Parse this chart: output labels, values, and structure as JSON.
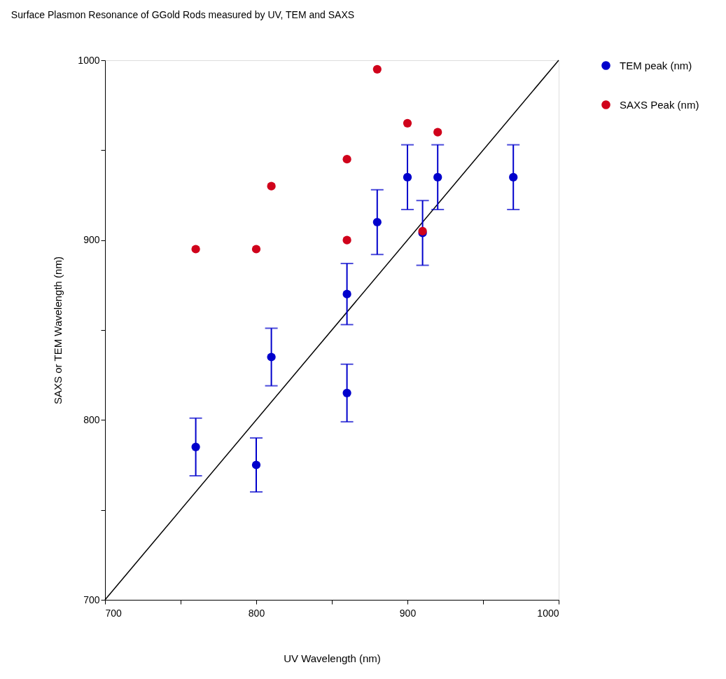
{
  "chart_data": {
    "type": "scatter",
    "title": "Surface Plasmon Resonance of GGold Rods measured by UV, TEM and SAXS",
    "xlabel": "UV Wavelength (nm)",
    "ylabel": "SAXS or TEM Wavelength (nm)",
    "xlim": [
      700,
      1000
    ],
    "ylim": [
      700,
      1000
    ],
    "xticks": [
      700,
      {
        "value": 750,
        "label": null
      },
      800,
      {
        "value": 850,
        "label": null
      },
      900,
      {
        "value": 950,
        "label": null
      },
      1000
    ],
    "yticks": [
      700,
      {
        "value": 750,
        "label": null
      },
      800,
      {
        "value": 850,
        "label": null
      },
      900,
      {
        "value": 950,
        "label": null
      },
      1000
    ],
    "grid": false,
    "legend": "top right",
    "marker": "circle",
    "series": [
      {
        "type": "line",
        "color": "#000000",
        "x": [
          700,
          1000
        ],
        "values": [
          700,
          1000
        ],
        "marker": "none"
      },
      {
        "name": "TEM peak (nm)",
        "color": "#0000cc",
        "x": [
          760,
          800,
          810,
          860,
          860,
          880,
          900,
          910,
          920,
          970
        ],
        "values": [
          785,
          775,
          835,
          870,
          815,
          910,
          935,
          904,
          935,
          935
        ],
        "errors": [
          16,
          15,
          16,
          17,
          16,
          18,
          18,
          18,
          18,
          18
        ]
      },
      {
        "name": "SAXS Peak (nm)",
        "color": "#d0021b",
        "x": [
          760,
          800,
          810,
          860,
          860,
          880,
          900,
          910,
          920
        ],
        "values": [
          895,
          895,
          930,
          945,
          900,
          995,
          965,
          905,
          960
        ]
      }
    ]
  }
}
